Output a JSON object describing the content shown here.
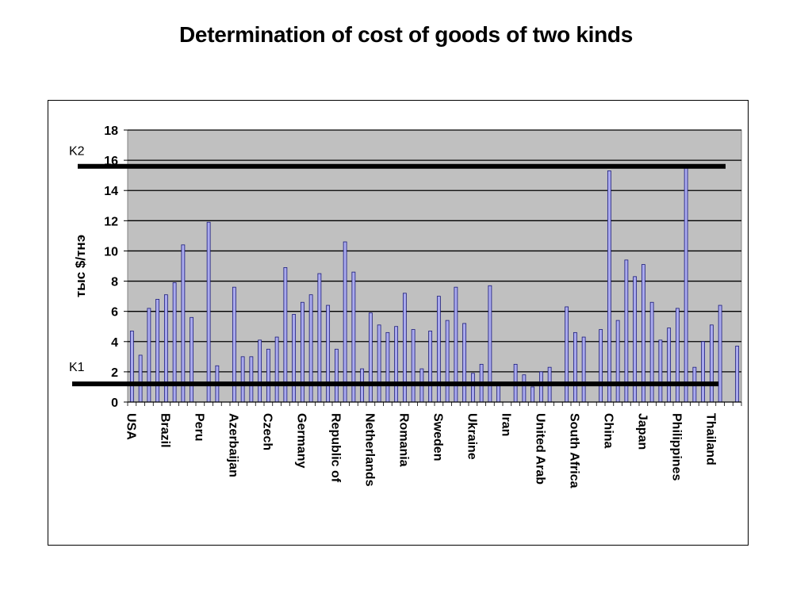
{
  "slide": {
    "title": "Determination of cost of goods of two kinds"
  },
  "chart_data": {
    "type": "bar",
    "title": "",
    "ylabel": "тыс $/тнэ",
    "xlabel": "",
    "ylim": [
      0,
      18
    ],
    "yticks": [
      0,
      2,
      4,
      6,
      8,
      10,
      12,
      14,
      16,
      18
    ],
    "grid": true,
    "legend": "none",
    "bar_color": "#aaaaee",
    "bar_edge": "#1a1a7a",
    "plot_bg": "#c0c0c0",
    "values": [
      4.7,
      3.1,
      6.2,
      6.8,
      7.1,
      7.9,
      10.4,
      5.6,
      0,
      11.9,
      2.4,
      0,
      7.6,
      3.0,
      3.0,
      4.1,
      3.5,
      4.3,
      8.9,
      5.8,
      6.6,
      7.1,
      8.5,
      6.4,
      3.5,
      10.6,
      8.6,
      2.2,
      5.9,
      5.1,
      4.6,
      5.0,
      7.2,
      4.8,
      2.2,
      4.7,
      7.0,
      5.4,
      7.6,
      5.2,
      1.9,
      2.5,
      7.7,
      1.1,
      0,
      2.5,
      1.8,
      1.0,
      2.0,
      2.3,
      0,
      6.3,
      4.6,
      4.3,
      0,
      4.8,
      15.3,
      5.4,
      9.4,
      8.3,
      9.1,
      6.6,
      4.1,
      4.9,
      6.2,
      15.5,
      2.3,
      4.0,
      5.1,
      6.4,
      0,
      3.7
    ],
    "category_labels": [
      {
        "index": 0,
        "label": "USA"
      },
      {
        "index": 4,
        "label": "Brazil"
      },
      {
        "index": 8,
        "label": "Peru"
      },
      {
        "index": 12,
        "label": "Azerbaijan"
      },
      {
        "index": 16,
        "label": "Czech"
      },
      {
        "index": 20,
        "label": "Germany"
      },
      {
        "index": 24,
        "label": "Republic of"
      },
      {
        "index": 28,
        "label": "Netherlands"
      },
      {
        "index": 32,
        "label": "Romania"
      },
      {
        "index": 36,
        "label": "Sweden"
      },
      {
        "index": 40,
        "label": "Ukraine"
      },
      {
        "index": 44,
        "label": "Iran"
      },
      {
        "index": 48,
        "label": "United Arab"
      },
      {
        "index": 52,
        "label": "South Africa"
      },
      {
        "index": 56,
        "label": "China"
      },
      {
        "index": 60,
        "label": "Japan"
      },
      {
        "index": 64,
        "label": "Philippines"
      },
      {
        "index": 68,
        "label": "Thailand"
      }
    ],
    "reference_lines": [
      {
        "name": "K2",
        "value": 15.6
      },
      {
        "name": "K1",
        "value": 1.2
      }
    ]
  }
}
